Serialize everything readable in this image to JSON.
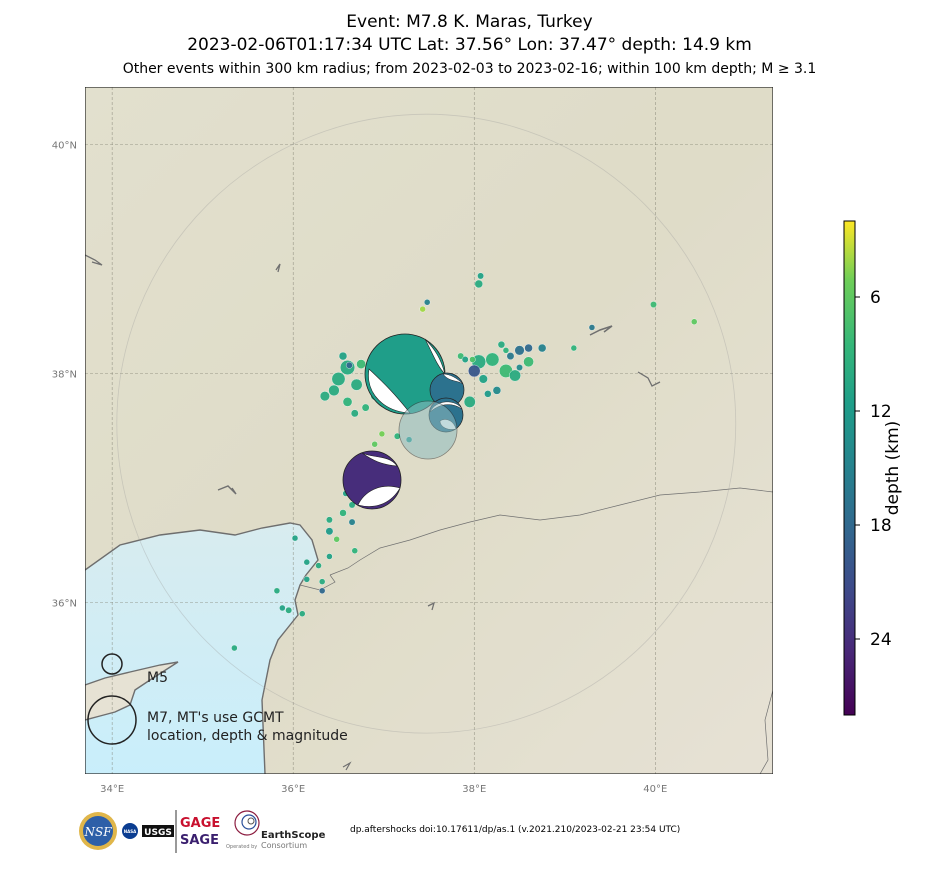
{
  "titles": {
    "line1": "Event: M7.8 K. Maras, Turkey",
    "line2": "2023-02-06T01:17:34 UTC Lat: 37.56° Lon: 37.47° depth: 14.9 km",
    "line3": "Other events within 300 km radius; from 2023-02-03 to 2023-02-16; within 100 km depth; M ≥ 3.1"
  },
  "map": {
    "lon_range": [
      33.7,
      41.3
    ],
    "lat_range": [
      34.5,
      40.5
    ],
    "lat_ticks": [
      {
        "value": 36,
        "label": "36°N"
      },
      {
        "value": 38,
        "label": "38°N"
      },
      {
        "value": 40,
        "label": "40°N"
      }
    ],
    "lon_ticks": [
      {
        "value": 34,
        "label": "34°E"
      },
      {
        "value": 36,
        "label": "36°E"
      },
      {
        "value": 38,
        "label": "38°E"
      },
      {
        "value": 40,
        "label": "40°E"
      }
    ],
    "search_radius_km": 300,
    "mainshock": {
      "lon": 37.47,
      "lat": 37.56,
      "depth_km": 14.9,
      "magnitude": 7.8
    }
  },
  "colorbar": {
    "label": "depth (km)",
    "range": [
      28,
      2
    ],
    "ticks": [
      {
        "value": 6,
        "label": "6"
      },
      {
        "value": 12,
        "label": "12"
      },
      {
        "value": 18,
        "label": "18"
      },
      {
        "value": 24,
        "label": "24"
      }
    ]
  },
  "legend": {
    "small_label": "M5",
    "large_label_line1": "M7, MT's use GCMT",
    "large_label_line2": "location, depth & magnitude"
  },
  "footer": {
    "doi": "dp.aftershocks doi:10.17611/dp/as.1 (v.2021.210/2023-02-21 23:54 UTC)",
    "logos": {
      "nsf": "NSF",
      "nasa": "NASA",
      "usgs": "USGS",
      "gage": "GAGE",
      "sage": "SAGE",
      "earthscope": "EarthScope",
      "consortium": "Consortium",
      "operated_by": "Operated by"
    }
  },
  "colors": {
    "lake": "#6f8fa8",
    "coast": "#707070",
    "grid": "#8a8a7a"
  },
  "events": [
    {
      "lon": 37.47,
      "lat": 37.56,
      "depth_km": 14.9,
      "mag": 7.8
    },
    {
      "lon": 37.25,
      "lat": 38.1,
      "depth_km": 12,
      "mag": 7.6
    },
    {
      "lon": 36.85,
      "lat": 37.17,
      "depth_km": 25,
      "mag": 6.7
    },
    {
      "lon": 37.7,
      "lat": 38.02,
      "depth_km": 17,
      "mag": 6.0
    },
    {
      "lon": 37.75,
      "lat": 37.75,
      "depth_km": 17,
      "mag": 6.0
    },
    {
      "lon": 37.65,
      "lat": 37.7,
      "depth_km": 14,
      "mag": 5.6
    },
    {
      "lon": 36.6,
      "lat": 38.05,
      "depth_km": 10,
      "mag": 5.4
    },
    {
      "lon": 36.5,
      "lat": 37.95,
      "depth_km": 10,
      "mag": 5.2
    },
    {
      "lon": 36.45,
      "lat": 37.85,
      "depth_km": 10,
      "mag": 4.8
    },
    {
      "lon": 36.35,
      "lat": 37.8,
      "depth_km": 10,
      "mag": 4.6
    },
    {
      "lon": 36.7,
      "lat": 37.9,
      "depth_km": 10,
      "mag": 4.9
    },
    {
      "lon": 36.6,
      "lat": 37.75,
      "depth_km": 9,
      "mag": 4.5
    },
    {
      "lon": 36.75,
      "lat": 38.08,
      "depth_km": 8,
      "mag": 4.5
    },
    {
      "lon": 36.9,
      "lat": 37.8,
      "depth_km": 9,
      "mag": 4.3
    },
    {
      "lon": 36.55,
      "lat": 38.15,
      "depth_km": 11,
      "mag": 4.3
    },
    {
      "lon": 36.68,
      "lat": 37.65,
      "depth_km": 10,
      "mag": 4.2
    },
    {
      "lon": 36.8,
      "lat": 37.7,
      "depth_km": 9,
      "mag": 4.2
    },
    {
      "lon": 36.62,
      "lat": 38.07,
      "depth_km": 18,
      "mag": 4.0
    },
    {
      "lon": 38.05,
      "lat": 38.1,
      "depth_km": 10,
      "mag": 5.3
    },
    {
      "lon": 38.2,
      "lat": 38.12,
      "depth_km": 9,
      "mag": 5.2
    },
    {
      "lon": 38.35,
      "lat": 38.02,
      "depth_km": 8,
      "mag": 5.2
    },
    {
      "lon": 38.0,
      "lat": 38.02,
      "depth_km": 20,
      "mag": 5.0
    },
    {
      "lon": 38.45,
      "lat": 37.98,
      "depth_km": 10,
      "mag": 4.9
    },
    {
      "lon": 37.95,
      "lat": 37.75,
      "depth_km": 10,
      "mag": 4.9
    },
    {
      "lon": 38.6,
      "lat": 38.1,
      "depth_km": 8,
      "mag": 4.7
    },
    {
      "lon": 38.5,
      "lat": 38.2,
      "depth_km": 17,
      "mag": 4.6
    },
    {
      "lon": 38.1,
      "lat": 37.95,
      "depth_km": 11,
      "mag": 4.4
    },
    {
      "lon": 38.25,
      "lat": 37.85,
      "depth_km": 14,
      "mag": 4.3
    },
    {
      "lon": 38.75,
      "lat": 38.22,
      "depth_km": 15,
      "mag": 4.3
    },
    {
      "lon": 38.6,
      "lat": 38.22,
      "depth_km": 18,
      "mag": 4.3
    },
    {
      "lon": 38.4,
      "lat": 38.15,
      "depth_km": 16,
      "mag": 4.2
    },
    {
      "lon": 38.3,
      "lat": 38.25,
      "depth_km": 10,
      "mag": 4.1
    },
    {
      "lon": 38.15,
      "lat": 37.82,
      "depth_km": 12,
      "mag": 4.1
    },
    {
      "lon": 37.85,
      "lat": 38.15,
      "depth_km": 8,
      "mag": 4.0
    },
    {
      "lon": 37.9,
      "lat": 38.12,
      "depth_km": 11,
      "mag": 4.0
    },
    {
      "lon": 38.5,
      "lat": 38.05,
      "depth_km": 14,
      "mag": 4.0
    },
    {
      "lon": 37.98,
      "lat": 38.12,
      "depth_km": 7,
      "mag": 3.9
    },
    {
      "lon": 38.35,
      "lat": 38.2,
      "depth_km": 9,
      "mag": 3.9
    },
    {
      "lon": 38.05,
      "lat": 38.78,
      "depth_km": 10,
      "mag": 4.3
    },
    {
      "lon": 38.07,
      "lat": 38.85,
      "depth_km": 11,
      "mag": 4.0
    },
    {
      "lon": 37.48,
      "lat": 38.62,
      "depth_km": 15,
      "mag": 3.6
    },
    {
      "lon": 37.43,
      "lat": 38.56,
      "depth_km": 4,
      "mag": 3.6
    },
    {
      "lon": 39.1,
      "lat": 38.22,
      "depth_km": 9,
      "mag": 3.8
    },
    {
      "lon": 39.3,
      "lat": 38.4,
      "depth_km": 16,
      "mag": 3.5
    },
    {
      "lon": 39.98,
      "lat": 38.6,
      "depth_km": 8,
      "mag": 4.0
    },
    {
      "lon": 40.43,
      "lat": 38.45,
      "depth_km": 6,
      "mag": 3.8
    },
    {
      "lon": 36.98,
      "lat": 37.47,
      "depth_km": 5,
      "mag": 3.9
    },
    {
      "lon": 37.15,
      "lat": 37.45,
      "depth_km": 9,
      "mag": 4.0
    },
    {
      "lon": 36.9,
      "lat": 37.38,
      "depth_km": 6,
      "mag": 3.8
    },
    {
      "lon": 37.28,
      "lat": 37.42,
      "depth_km": 12,
      "mag": 3.8
    },
    {
      "lon": 36.75,
      "lat": 37.1,
      "depth_km": 10,
      "mag": 4.0
    },
    {
      "lon": 36.58,
      "lat": 36.95,
      "depth_km": 11,
      "mag": 3.9
    },
    {
      "lon": 36.65,
      "lat": 36.85,
      "depth_km": 10,
      "mag": 4.0
    },
    {
      "lon": 36.55,
      "lat": 36.78,
      "depth_km": 9,
      "mag": 4.1
    },
    {
      "lon": 36.4,
      "lat": 36.72,
      "depth_km": 10,
      "mag": 4.0
    },
    {
      "lon": 36.65,
      "lat": 36.7,
      "depth_km": 15,
      "mag": 4.0
    },
    {
      "lon": 36.4,
      "lat": 36.62,
      "depth_km": 12,
      "mag": 4.2
    },
    {
      "lon": 36.48,
      "lat": 36.55,
      "depth_km": 6,
      "mag": 3.6
    },
    {
      "lon": 36.68,
      "lat": 36.45,
      "depth_km": 9,
      "mag": 3.5
    },
    {
      "lon": 36.02,
      "lat": 36.56,
      "depth_km": 11,
      "mag": 3.9
    },
    {
      "lon": 36.4,
      "lat": 36.4,
      "depth_km": 11,
      "mag": 3.8
    },
    {
      "lon": 36.28,
      "lat": 36.32,
      "depth_km": 10,
      "mag": 3.9
    },
    {
      "lon": 36.15,
      "lat": 36.35,
      "depth_km": 11,
      "mag": 3.8
    },
    {
      "lon": 36.32,
      "lat": 36.18,
      "depth_km": 10,
      "mag": 3.7
    },
    {
      "lon": 36.15,
      "lat": 36.2,
      "depth_km": 11,
      "mag": 3.8
    },
    {
      "lon": 35.82,
      "lat": 36.1,
      "depth_km": 10,
      "mag": 3.9
    },
    {
      "lon": 36.32,
      "lat": 36.1,
      "depth_km": 18,
      "mag": 3.6
    },
    {
      "lon": 35.95,
      "lat": 35.93,
      "depth_km": 10,
      "mag": 4.0
    },
    {
      "lon": 35.88,
      "lat": 35.95,
      "depth_km": 11,
      "mag": 3.8
    },
    {
      "lon": 36.1,
      "lat": 35.9,
      "depth_km": 10,
      "mag": 3.7
    },
    {
      "lon": 35.35,
      "lat": 35.6,
      "depth_km": 10,
      "mag": 3.8
    }
  ]
}
